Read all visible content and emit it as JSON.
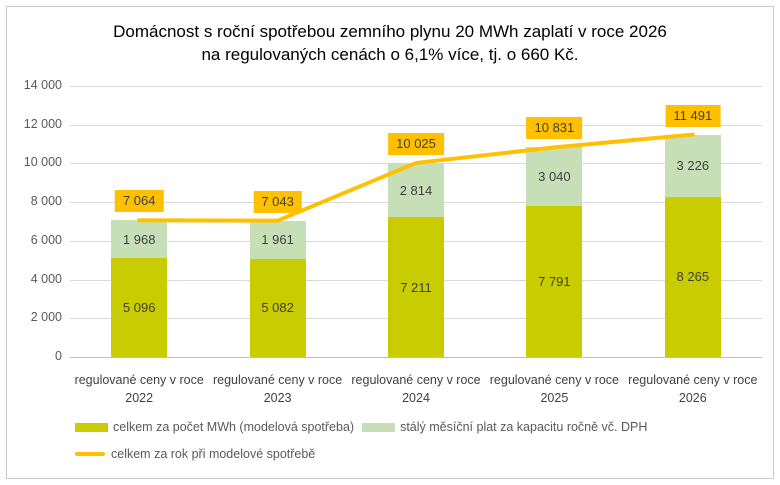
{
  "title": {
    "line1": "Domácnost s roční spotřebou zemního plynu 20 MWh zaplatí v roce 2026",
    "line2": "na regulovaných cenách o 6,1% více, tj. o 660 Kč."
  },
  "chart_data": {
    "type": "bar",
    "subtype": "stacked-columns-with-line-overlay",
    "categories": [
      "regulované ceny v roce 2022",
      "regulované ceny v roce 2023",
      "regulované ceny v roce 2024",
      "regulované ceny v roce 2025",
      "regulované ceny v roce 2026"
    ],
    "series": [
      {
        "name": "celkem za počet MWh (modelová spotřeba)",
        "type": "bar",
        "color": "#C9CC00",
        "values": [
          5096,
          5082,
          7211,
          7791,
          8265
        ]
      },
      {
        "name": "stálý měsíční plat za kapacitu ročně vč. DPH",
        "type": "bar",
        "color": "#C6DFB6",
        "values": [
          1968,
          1961,
          2814,
          3040,
          3226
        ]
      },
      {
        "name": "celkem za rok při modelové spotřebě",
        "type": "line",
        "color": "#FFC000",
        "values": [
          7064,
          7043,
          10025,
          10831,
          11491
        ]
      }
    ],
    "xlabel": "",
    "ylabel": "",
    "ylim": [
      0,
      14000
    ],
    "ytick_step": 2000,
    "ytick_labels": [
      "0",
      "2 000",
      "4 000",
      "6 000",
      "8 000",
      "10 000",
      "12 000",
      "14 000"
    ],
    "grid": true,
    "legend_position": "bottom",
    "colors": {
      "gridline": "#D9D9D9",
      "axis_line": "#BFBFBF",
      "tick_text": "#595959",
      "data_label_text": "#404040",
      "total_label_bg": "#FFC000",
      "title_text": "#000000"
    }
  }
}
